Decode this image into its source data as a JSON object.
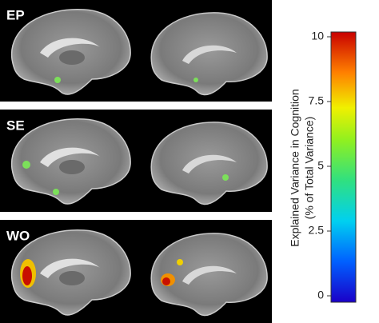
{
  "panels": [
    {
      "label": "EP"
    },
    {
      "label": "SE"
    },
    {
      "label": "WO"
    }
  ],
  "colorbar": {
    "title": [
      "Explained Variance in Cognition",
      "(% of Total Variance)"
    ],
    "lim": [
      0,
      10
    ],
    "ticks": [
      0,
      2.5,
      5,
      7.5,
      10
    ]
  }
}
